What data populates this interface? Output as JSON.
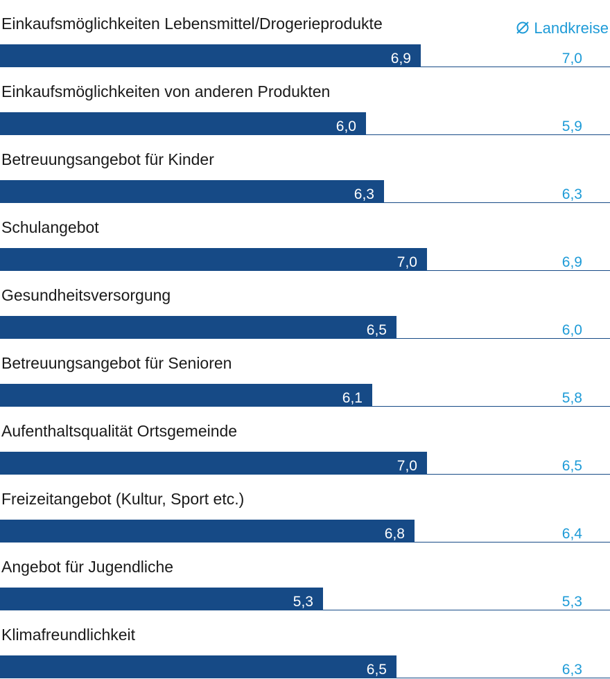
{
  "chart_data": {
    "type": "bar",
    "orientation": "horizontal",
    "categories": [
      "Einkaufsmöglichkeiten Lebensmittel/Drogerieprodukte",
      "Einkaufsmöglichkeiten von anderen Produkten",
      "Betreuungsangebot für Kinder",
      "Schulangebot",
      "Gesundheitsversorgung",
      "Betreuungsangebot für Senioren",
      "Aufenthaltsqualität Ortsgemeinde",
      "Freizeitangebot (Kultur, Sport etc.)",
      "Angebot für Jugendliche",
      "Klimafreundlichkeit"
    ],
    "series": [
      {
        "values": [
          6.9,
          6.0,
          6.3,
          7.0,
          6.5,
          6.1,
          7.0,
          6.8,
          5.3,
          6.5
        ],
        "labels": [
          "6,9",
          "6,0",
          "6,3",
          "7,0",
          "6,5",
          "6,1",
          "7,0",
          "6,8",
          "5,3",
          "6,5"
        ],
        "color": "#164a86"
      },
      {
        "name": "Landkreise",
        "values": [
          7.0,
          5.9,
          6.3,
          6.9,
          6.0,
          5.8,
          6.5,
          6.4,
          5.3,
          6.3
        ],
        "labels": [
          "7,0",
          "5,9",
          "6,3",
          "6,9",
          "6,0",
          "5,8",
          "6,5",
          "6,4",
          "5,3",
          "6,3"
        ],
        "color": "#1e9bd7"
      }
    ],
    "legend": {
      "symbol": "average-sign-icon",
      "text": "Landkreise",
      "position": "top-right"
    },
    "grid": false
  }
}
